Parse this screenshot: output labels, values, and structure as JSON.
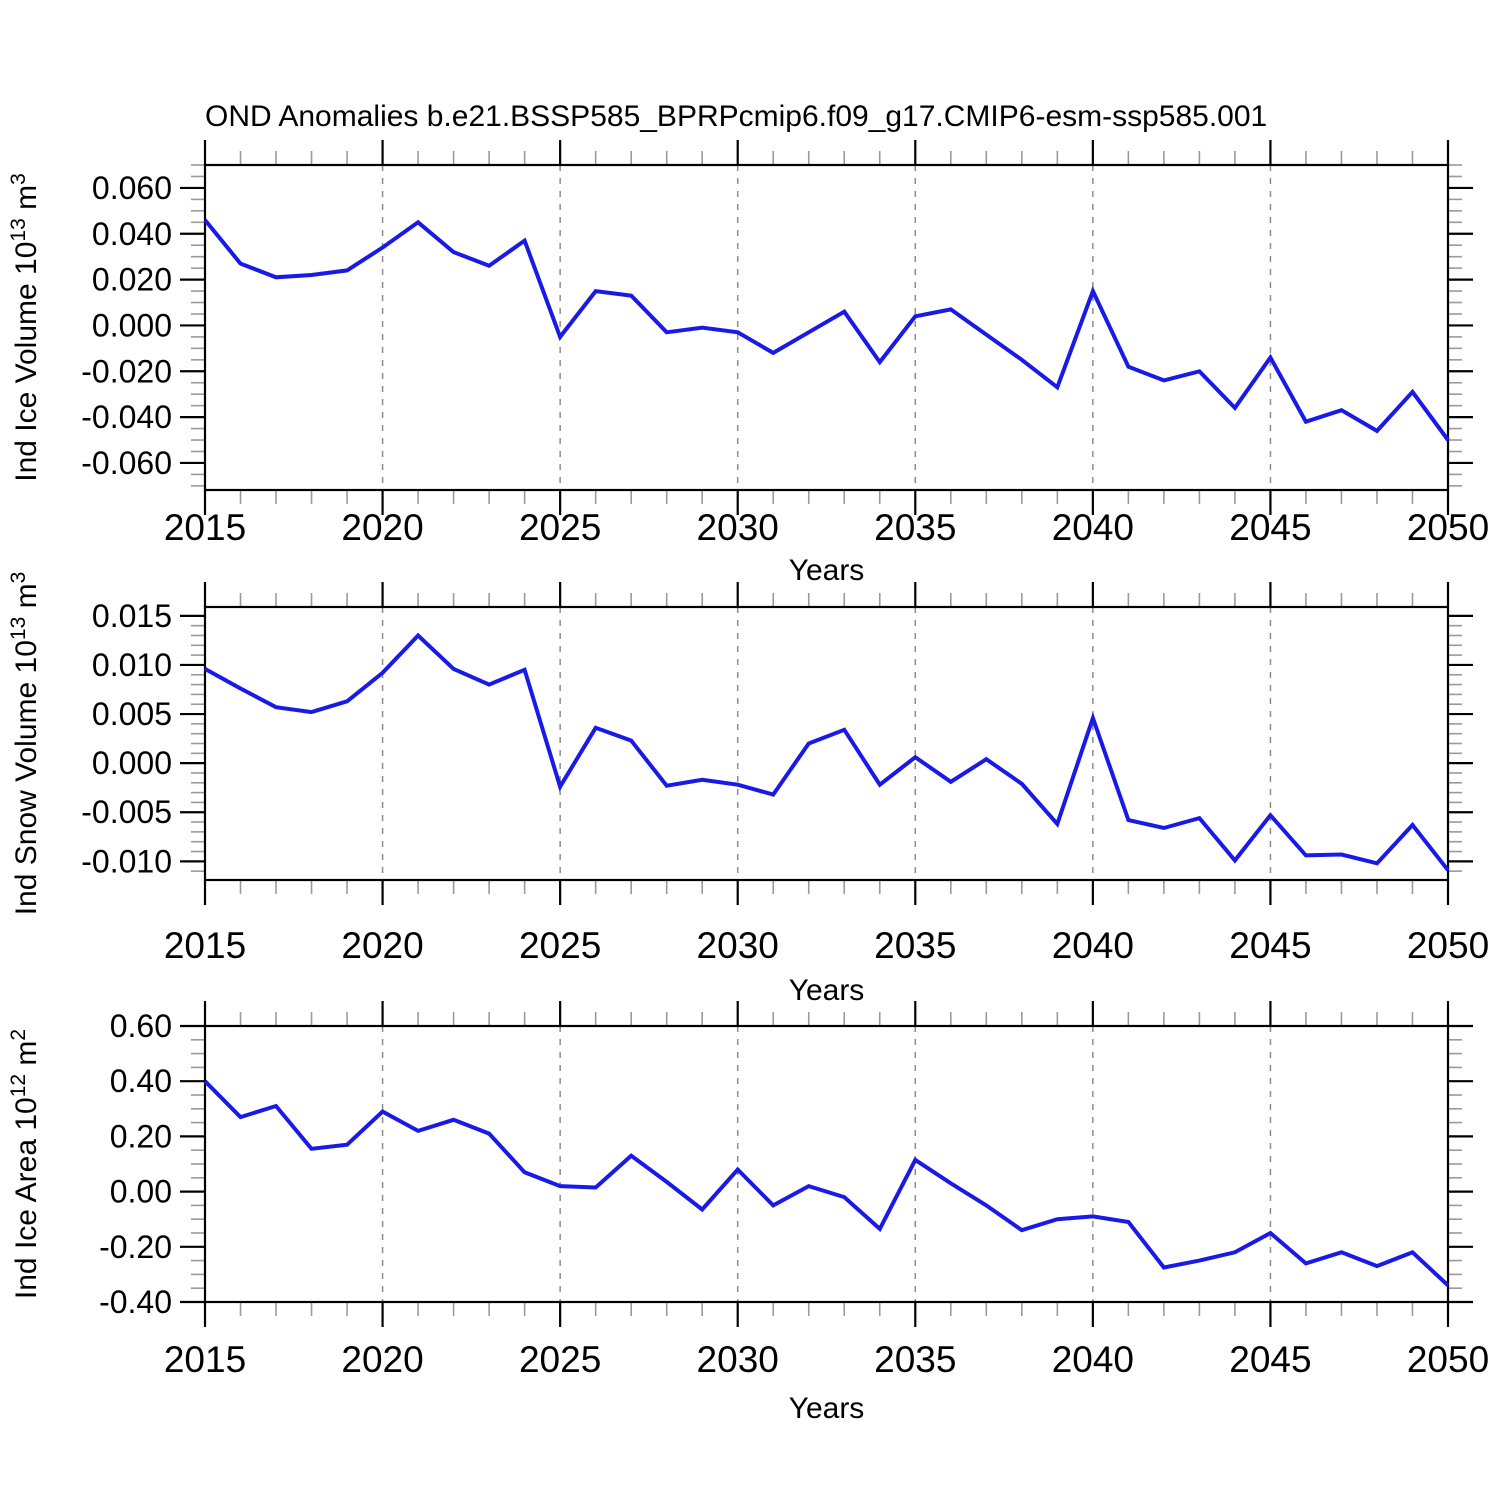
{
  "title": "OND Anomalies b.e21.BSSP585_BPRPcmip6.f09_g17.CMIP6-esm-ssp585.001",
  "line_color": "#1a1ae6",
  "axis_color": "#000000",
  "minor_tick_color": "#9a9a9a",
  "grid_color": "#8c8c8c",
  "chart_data": [
    {
      "type": "line",
      "name": "ind-ice-volume",
      "ylabel_parts": [
        {
          "t": "Ind Ice Volume 10"
        },
        {
          "t": "13",
          "sup": true
        },
        {
          "t": " m"
        },
        {
          "t": "3",
          "sup": true
        }
      ],
      "xlabel": "Years",
      "xlim": [
        2015,
        2050
      ],
      "ylim": [
        -0.0718,
        0.07
      ],
      "x": [
        2015,
        2016,
        2017,
        2018,
        2019,
        2020,
        2021,
        2022,
        2023,
        2024,
        2025,
        2026,
        2027,
        2028,
        2029,
        2030,
        2031,
        2032,
        2033,
        2034,
        2035,
        2036,
        2037,
        2038,
        2039,
        2040,
        2041,
        2042,
        2043,
        2044,
        2045,
        2046,
        2047,
        2048,
        2049,
        2050
      ],
      "values": [
        0.046,
        0.027,
        0.021,
        0.022,
        0.024,
        0.034,
        0.045,
        0.032,
        0.026,
        0.037,
        -0.005,
        0.015,
        0.013,
        -0.003,
        -0.001,
        -0.003,
        -0.012,
        -0.003,
        0.006,
        -0.016,
        0.004,
        0.007,
        -0.004,
        -0.015,
        -0.027,
        0.015,
        -0.018,
        -0.024,
        -0.02,
        -0.036,
        -0.014,
        -0.042,
        -0.037,
        -0.046,
        -0.029,
        -0.05
      ],
      "ytick_values": [
        0.06,
        0.04,
        0.02,
        0.0,
        -0.02,
        -0.04,
        -0.06
      ],
      "ytick_labels": [
        "0.060",
        "0.040",
        "0.020",
        "0.000",
        "-0.020",
        "-0.040",
        "-0.060"
      ],
      "y_minor_step": 0.005,
      "xtick_major_values": [
        2015,
        2020,
        2025,
        2030,
        2035,
        2040,
        2045,
        2050
      ],
      "xtick_labels": [
        "2015",
        "2020",
        "2025",
        "2030",
        "2035",
        "2040",
        "2045",
        "2050"
      ],
      "grid_years": [
        2020,
        2025,
        2030,
        2035,
        2040,
        2045
      ],
      "x_minor_step": 1
    },
    {
      "type": "line",
      "name": "ind-snow-volume",
      "ylabel_parts": [
        {
          "t": "Ind Snow Volume 10"
        },
        {
          "t": "13",
          "sup": true
        },
        {
          "t": " m"
        },
        {
          "t": "3",
          "sup": true
        }
      ],
      "xlabel": "Years",
      "xlim": [
        2015,
        2050
      ],
      "ylim": [
        -0.0119,
        0.0159
      ],
      "x": [
        2015,
        2016,
        2017,
        2018,
        2019,
        2020,
        2021,
        2022,
        2023,
        2024,
        2025,
        2026,
        2027,
        2028,
        2029,
        2030,
        2031,
        2032,
        2033,
        2034,
        2035,
        2036,
        2037,
        2038,
        2039,
        2040,
        2041,
        2042,
        2043,
        2044,
        2045,
        2046,
        2047,
        2048,
        2049,
        2050
      ],
      "values": [
        0.0096,
        0.0076,
        0.0057,
        0.0052,
        0.0063,
        0.0092,
        0.013,
        0.0096,
        0.008,
        0.0095,
        -0.0024,
        0.0036,
        0.0023,
        -0.0023,
        -0.0017,
        -0.0022,
        -0.0032,
        0.002,
        0.0034,
        -0.0022,
        0.0006,
        -0.0019,
        0.0004,
        -0.0021,
        -0.0062,
        0.0046,
        -0.0058,
        -0.0066,
        -0.0056,
        -0.0099,
        -0.0053,
        -0.0094,
        -0.0093,
        -0.0102,
        -0.0063,
        -0.0109
      ],
      "ytick_values": [
        0.015,
        0.01,
        0.005,
        0.0,
        -0.005,
        -0.01
      ],
      "ytick_labels": [
        "0.015",
        "0.010",
        "0.005",
        "0.000",
        "-0.005",
        "-0.010"
      ],
      "y_minor_step": 0.001,
      "xtick_major_values": [
        2015,
        2020,
        2025,
        2030,
        2035,
        2040,
        2045,
        2050
      ],
      "xtick_labels": [
        "2015",
        "2020",
        "2025",
        "2030",
        "2035",
        "2040",
        "2045",
        "2050"
      ],
      "grid_years": [
        2020,
        2025,
        2030,
        2035,
        2040,
        2045
      ],
      "x_minor_step": 1
    },
    {
      "type": "line",
      "name": "ind-ice-area",
      "ylabel_parts": [
        {
          "t": "Ind Ice Area 10"
        },
        {
          "t": "12",
          "sup": true
        },
        {
          "t": " m"
        },
        {
          "t": "2",
          "sup": true
        }
      ],
      "xlabel": "Years",
      "xlim": [
        2015,
        2050
      ],
      "ylim": [
        -0.4,
        0.6
      ],
      "x": [
        2015,
        2016,
        2017,
        2018,
        2019,
        2020,
        2021,
        2022,
        2023,
        2024,
        2025,
        2026,
        2027,
        2028,
        2029,
        2030,
        2031,
        2032,
        2033,
        2034,
        2035,
        2036,
        2037,
        2038,
        2039,
        2040,
        2041,
        2042,
        2043,
        2044,
        2045,
        2046,
        2047,
        2048,
        2049,
        2050
      ],
      "values": [
        0.4,
        0.27,
        0.31,
        0.155,
        0.17,
        0.29,
        0.22,
        0.26,
        0.21,
        0.07,
        0.02,
        0.015,
        0.13,
        0.035,
        -0.065,
        0.08,
        -0.05,
        0.02,
        -0.02,
        -0.135,
        0.115,
        0.03,
        -0.05,
        -0.14,
        -0.1,
        -0.09,
        -0.11,
        -0.275,
        -0.25,
        -0.22,
        -0.15,
        -0.26,
        -0.22,
        -0.27,
        -0.22,
        -0.34
      ],
      "ytick_values": [
        0.6,
        0.4,
        0.2,
        0.0,
        -0.2,
        -0.4
      ],
      "ytick_labels": [
        "0.60",
        "0.40",
        "0.20",
        "0.00",
        "-0.20",
        "-0.40"
      ],
      "y_minor_step": 0.05,
      "xtick_major_values": [
        2015,
        2020,
        2025,
        2030,
        2035,
        2040,
        2045,
        2050
      ],
      "xtick_labels": [
        "2015",
        "2020",
        "2025",
        "2030",
        "2035",
        "2040",
        "2045",
        "2050"
      ],
      "grid_years": [
        2020,
        2025,
        2030,
        2035,
        2040,
        2045
      ],
      "x_minor_step": 1
    }
  ]
}
